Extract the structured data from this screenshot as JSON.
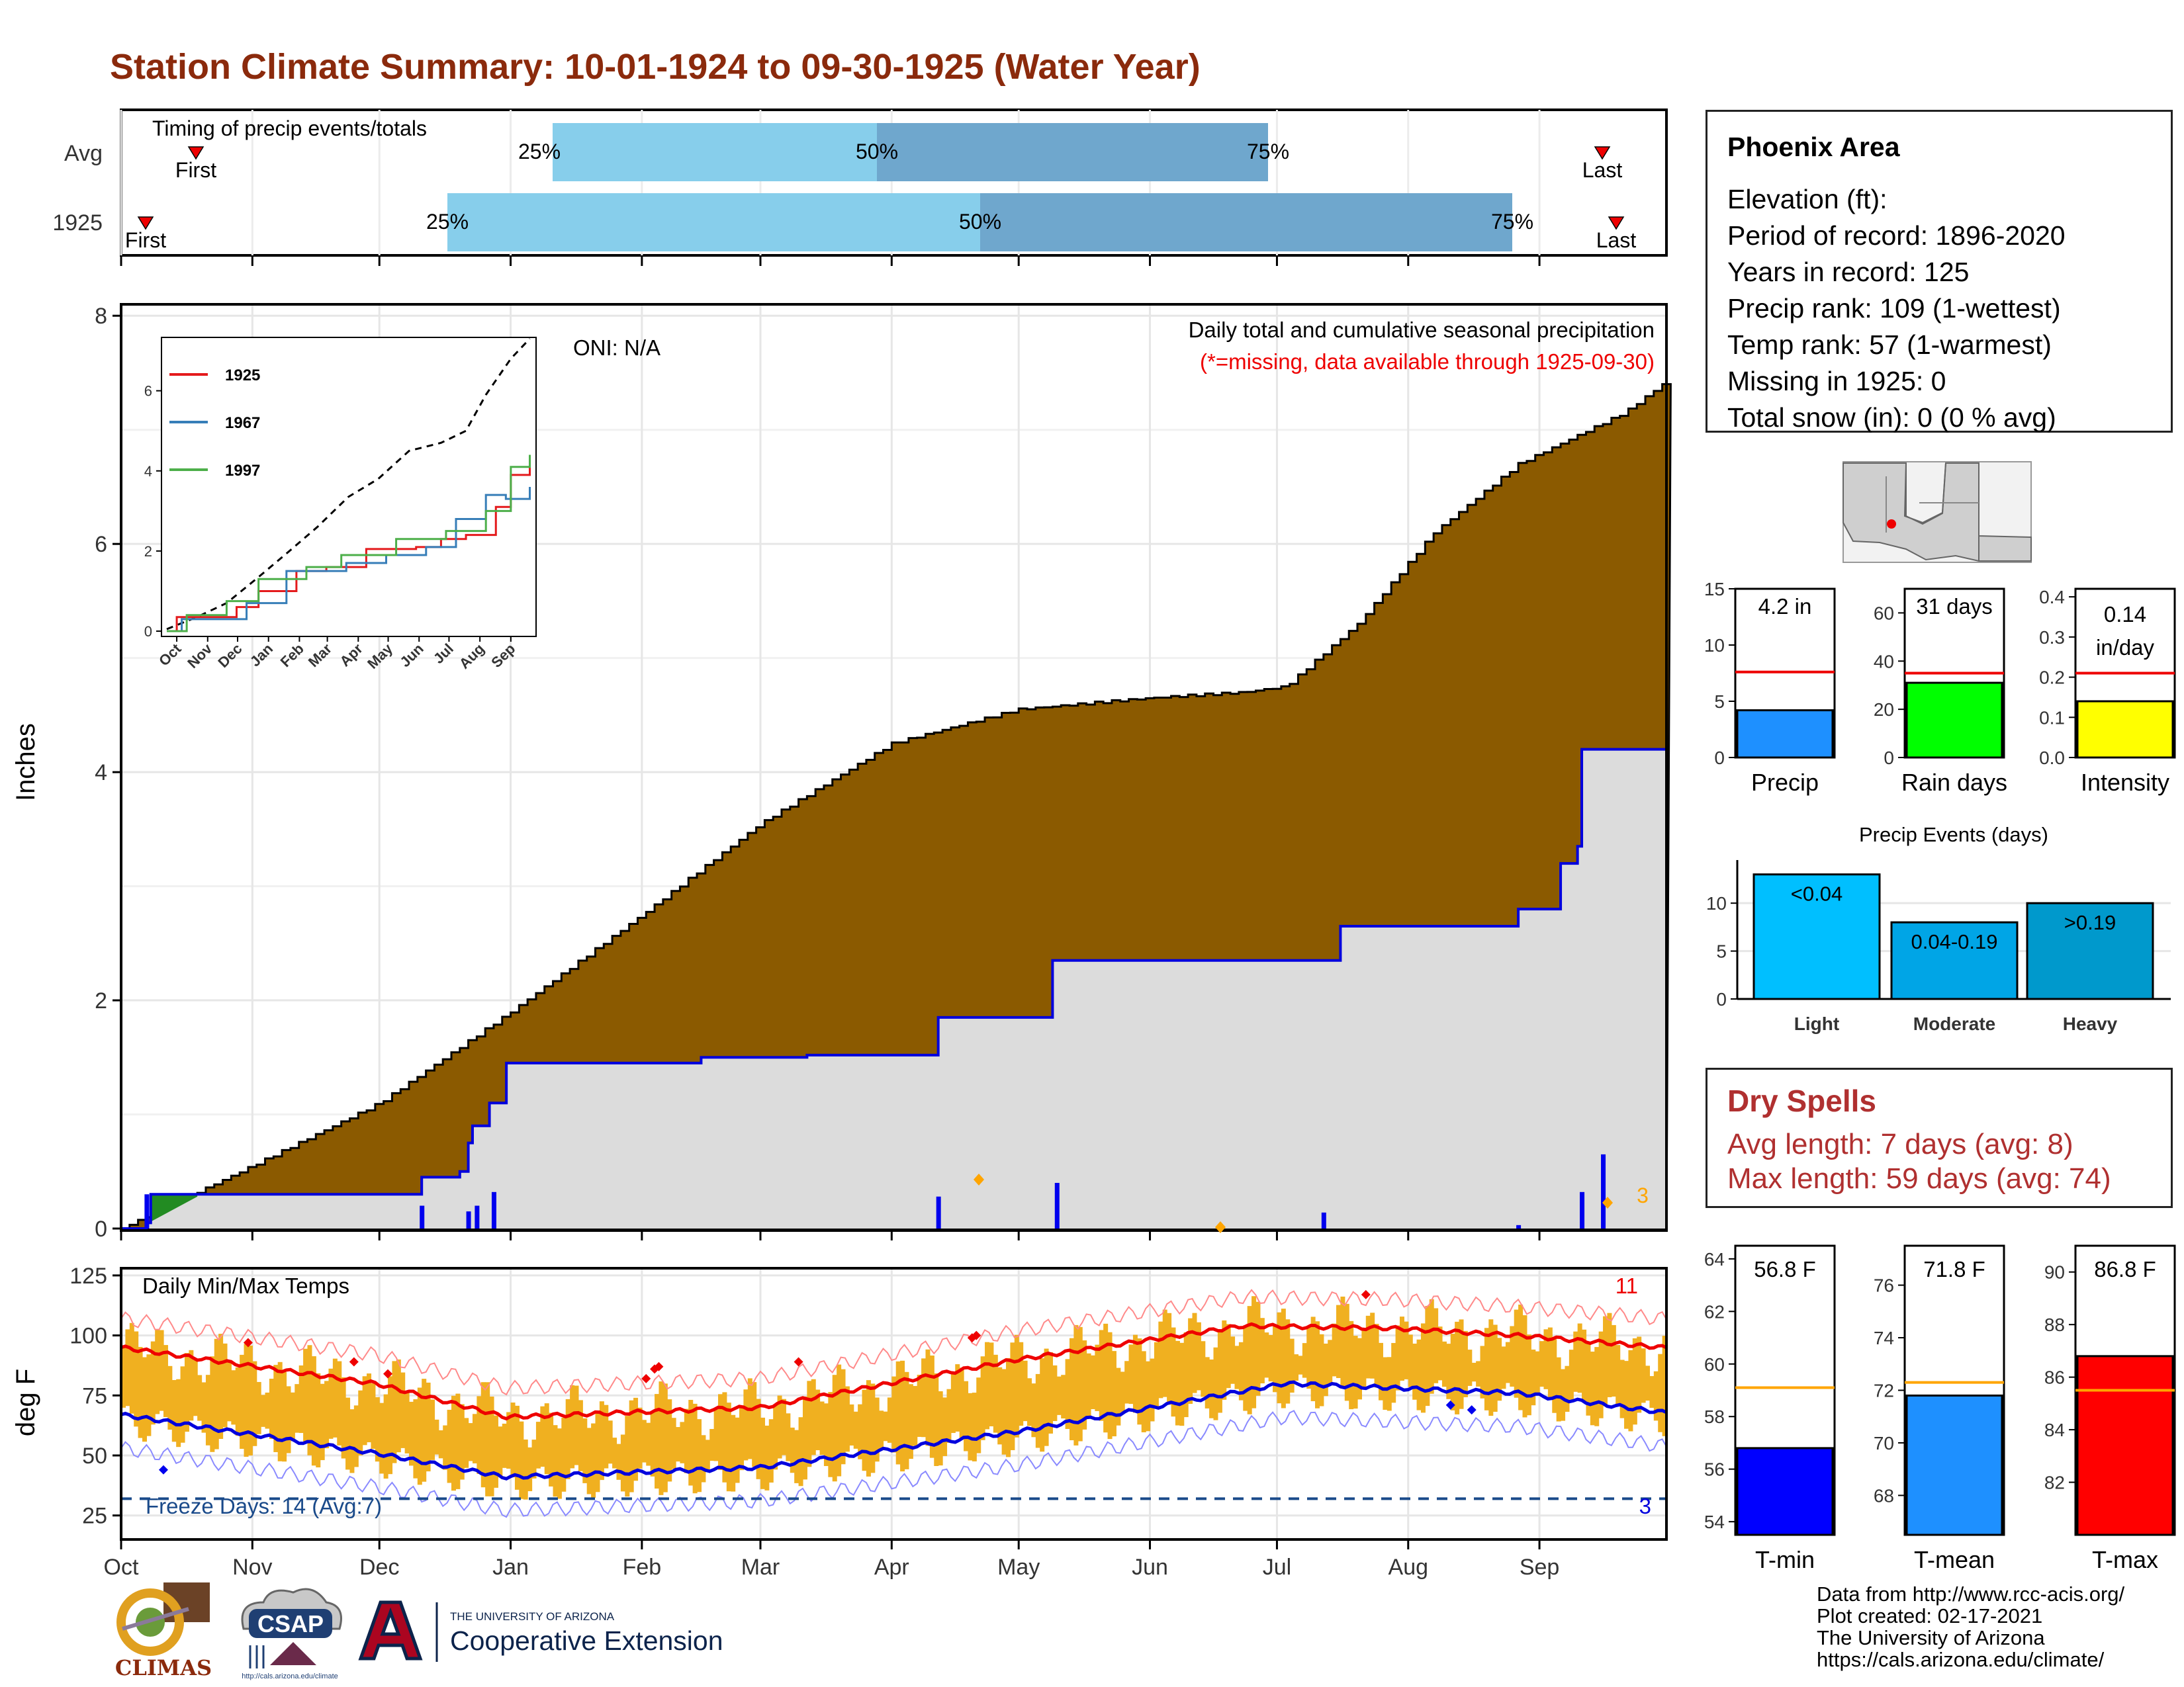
{
  "title": "Station Climate Summary: 10-01-1924 to 09-30-1925 (Water Year)",
  "timing": {
    "label": "Timing of precip events/totals",
    "rows": [
      {
        "name": "Avg",
        "first": "First",
        "last": "Last",
        "p25": "25%",
        "p50": "50%",
        "p75": "75%"
      },
      {
        "name": "1925",
        "first": "First",
        "last": "Last",
        "p25": "25%",
        "p50": "50%",
        "p75": "75%"
      }
    ]
  },
  "precip_panel": {
    "ylabel": "Inches",
    "yticks": [
      "0",
      "2",
      "4",
      "6",
      "8"
    ],
    "note1": "Daily total and cumulative seasonal precipitation",
    "note2": "(*=missing, data available through 1925-09-30)",
    "count_label": "3",
    "oni": "ONI: N/A"
  },
  "inset": {
    "yticks": [
      "0",
      "2",
      "4",
      "6"
    ],
    "xticks": [
      "Oct",
      "Nov",
      "Dec",
      "Jan",
      "Feb",
      "Mar",
      "Apr",
      "May",
      "Jun",
      "Jul",
      "Aug",
      "Sep"
    ],
    "legend": [
      {
        "name": "1925",
        "color": "#e41a1c"
      },
      {
        "name": "1967",
        "color": "#377eb8"
      },
      {
        "name": "1997",
        "color": "#4daf4a"
      }
    ]
  },
  "temp_panel": {
    "ylabel": "deg F",
    "title": "Daily Min/Max Temps",
    "yticks": [
      "25",
      "50",
      "75",
      "100",
      "125"
    ],
    "freeze_label": "Freeze Days: 14 (Avg:7)",
    "hot_count": "11",
    "cold_count": "3"
  },
  "months": [
    "Oct",
    "Nov",
    "Dec",
    "Jan",
    "Feb",
    "Mar",
    "Apr",
    "May",
    "Jun",
    "Jul",
    "Aug",
    "Sep"
  ],
  "station": {
    "name": "Phoenix Area",
    "lines": [
      "Elevation (ft):",
      "Period of record: 1896-2020",
      "Years in record: 125",
      "Precip rank: 109 (1-wettest)",
      "Temp rank: 57 (1-warmest)",
      "Missing in 1925: 0",
      "Total snow (in): 0 (0 % avg)"
    ]
  },
  "mini_bars": [
    {
      "label": "Precip",
      "value_label": "4.2 in",
      "value": 4.2,
      "avg": 7.6,
      "max": 15,
      "yticks": [
        "0",
        "5",
        "10",
        "15"
      ],
      "color": "#1e90ff"
    },
    {
      "label": "Rain days",
      "value_label": "31 days",
      "value": 31,
      "avg": 35,
      "max": 70,
      "yticks": [
        "0",
        "20",
        "40",
        "60"
      ],
      "color": "#00ff00"
    },
    {
      "label": "Intensity",
      "value_label": "0.14 in/day",
      "value": 0.14,
      "avg": 0.21,
      "max": 0.42,
      "yticks": [
        "0.0",
        "0.1",
        "0.2",
        "0.3",
        "0.4"
      ],
      "color": "#ffff00"
    }
  ],
  "events": {
    "title": "Precip Events (days)",
    "yticks": [
      "0",
      "5",
      "10"
    ],
    "bars": [
      {
        "category": "Light",
        "value_label": "<0.04",
        "value": 13,
        "color": "#00bfff"
      },
      {
        "category": "Moderate",
        "value_label": "0.04-0.19",
        "value": 8,
        "color": "#00a5e6"
      },
      {
        "category": "Heavy",
        "value_label": ">0.19",
        "value": 10,
        "color": "#0099cc"
      }
    ]
  },
  "dry_spells": {
    "title": "Dry Spells",
    "avg": "Avg length: 7 days (avg: 8)",
    "max": "Max length: 59 days (avg: 74)"
  },
  "temp_bars": [
    {
      "label": "T-min",
      "value_label": "56.8 F",
      "value": 56.8,
      "avg": 59.1,
      "min": 53.5,
      "max": 64.5,
      "yticks": [
        "54",
        "56",
        "58",
        "60",
        "62",
        "64"
      ],
      "color": "#0000ff"
    },
    {
      "label": "T-mean",
      "value_label": "71.8 F",
      "value": 71.8,
      "avg": 72.3,
      "min": 66.5,
      "max": 77.5,
      "yticks": [
        "68",
        "70",
        "72",
        "74",
        "76"
      ],
      "color": "#1e90ff"
    },
    {
      "label": "T-max",
      "value_label": "86.8 F",
      "value": 86.8,
      "avg": 85.5,
      "min": 80.0,
      "max": 91.0,
      "yticks": [
        "82",
        "84",
        "86",
        "88",
        "90"
      ],
      "color": "#ff0000"
    }
  ],
  "footer": {
    "lines": [
      "Data from http://www.rcc-acis.org/",
      "Plot created: 02-17-2021",
      "The University of Arizona",
      "https://cals.arizona.edu/climate/"
    ],
    "climas": "CLIMAS",
    "csap": "CSAP",
    "csap_url": "http://cals.arizona.edu/climate",
    "ua_small": "THE UNIVERSITY OF ARIZONA",
    "ua_big": "Cooperative Extension"
  },
  "chart_data": [
    {
      "type": "bar",
      "title": "Timing of precip events/totals",
      "categories": [
        "Avg",
        "1925"
      ],
      "series": [
        {
          "name": "Avg",
          "first": "Oct 20",
          "p25": "Dec 30",
          "p50": "Mar 30",
          "p75": "Jul 10",
          "last": "Sep 20"
        },
        {
          "name": "1925",
          "first": "Oct 8",
          "p25": "Dec 18",
          "p50": "May 2",
          "p75": "Sep 10",
          "last": "Sep 23"
        }
      ]
    },
    {
      "type": "area",
      "title": "Daily total and cumulative seasonal precipitation",
      "ylabel": "Inches",
      "ylim": [
        0,
        8.1
      ],
      "x_months": [
        "Oct",
        "Nov",
        "Dec",
        "Jan",
        "Feb",
        "Mar",
        "Apr",
        "May",
        "Jun",
        "Jul",
        "Aug",
        "Sep"
      ],
      "series": [
        {
          "name": "Average cumulative",
          "points": [
            [
              0,
              0
            ],
            [
              31,
              0.55
            ],
            [
              61,
              1.1
            ],
            [
              92,
              1.9
            ],
            [
              123,
              2.75
            ],
            [
              151,
              3.55
            ],
            [
              182,
              4.25
            ],
            [
              212,
              4.55
            ],
            [
              243,
              4.65
            ],
            [
              265,
              4.7
            ],
            [
              275,
              4.75
            ],
            [
              292,
              5.3
            ],
            [
              310,
              6.1
            ],
            [
              330,
              6.7
            ],
            [
              355,
              7.15
            ],
            [
              364,
              7.4
            ]
          ]
        },
        {
          "name": "1925 cumulative",
          "points": [
            [
              0,
              0
            ],
            [
              6,
              0.05
            ],
            [
              7,
              0.3
            ],
            [
              70,
              0.3
            ],
            [
              71,
              0.45
            ],
            [
              80,
              0.5
            ],
            [
              82,
              0.75
            ],
            [
              83,
              0.9
            ],
            [
              87,
              1.1
            ],
            [
              91,
              1.45
            ],
            [
              137,
              1.5
            ],
            [
              162,
              1.52
            ],
            [
              193,
              1.85
            ],
            [
              220,
              2.35
            ],
            [
              288,
              2.65
            ],
            [
              330,
              2.8
            ],
            [
              340,
              3.2
            ],
            [
              344,
              3.35
            ],
            [
              345,
              4.2
            ],
            [
              364,
              4.2
            ]
          ]
        },
        {
          "name": "daily precip",
          "points": [
            [
              6,
              0.3
            ],
            [
              71,
              0.2
            ],
            [
              82,
              0.15
            ],
            [
              84,
              0.2
            ],
            [
              88,
              0.32
            ],
            [
              193,
              0.28
            ],
            [
              221,
              0.4
            ],
            [
              284,
              0.14
            ],
            [
              330,
              0.03
            ],
            [
              345,
              0.32
            ],
            [
              350,
              0.65
            ]
          ]
        }
      ]
    },
    {
      "type": "line",
      "title": "Daily Min/Max Temps",
      "ylabel": "deg F",
      "ylim": [
        15,
        128
      ],
      "series": [
        {
          "name": "avg max",
          "points": [
            [
              0,
              95
            ],
            [
              60,
              80
            ],
            [
              91,
              66
            ],
            [
              151,
              70
            ],
            [
              212,
              90
            ],
            [
              265,
              104
            ],
            [
              300,
              103
            ],
            [
              330,
              100
            ],
            [
              364,
              95
            ]
          ]
        },
        {
          "name": "avg min",
          "points": [
            [
              0,
              67
            ],
            [
              60,
              51
            ],
            [
              91,
              41
            ],
            [
              151,
              45
            ],
            [
              212,
              60
            ],
            [
              275,
              80
            ],
            [
              330,
              76
            ],
            [
              364,
              68
            ]
          ]
        }
      ]
    },
    {
      "type": "bar",
      "title": "Precip Events (days)",
      "categories": [
        "Light",
        "Moderate",
        "Heavy"
      ],
      "values": [
        13,
        8,
        10
      ]
    }
  ]
}
